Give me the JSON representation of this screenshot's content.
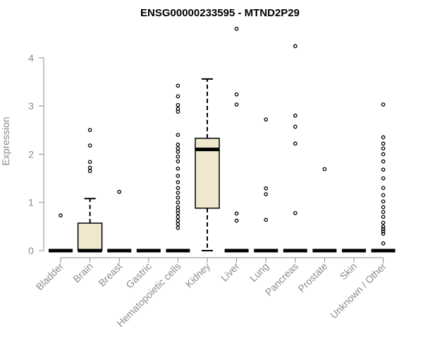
{
  "chart_data": {
    "type": "boxplot",
    "title": "ENSG00000233595 - MTND2P29",
    "xlabel": "",
    "ylabel": "Expression",
    "ylim": [
      0,
      4.6
    ],
    "yticks": [
      0,
      1,
      2,
      3,
      4
    ],
    "grid": false,
    "legend": "none",
    "box_fill": "#efe8cf",
    "categories": [
      "Bladder",
      "Brain",
      "Breast",
      "Gastric",
      "Hematopoietic cells",
      "Kidney",
      "Liver",
      "Lung",
      "Pancreas",
      "Prostate",
      "Skin",
      "Unknown / Other"
    ],
    "series": [
      {
        "category": "Bladder",
        "q1": 0,
        "median": 0,
        "q3": 0,
        "whisker_low": 0,
        "whisker_high": 0,
        "outliers": [
          0.73
        ]
      },
      {
        "category": "Brain",
        "q1": 0,
        "median": 0,
        "q3": 0.57,
        "whisker_low": 0,
        "whisker_high": 1.08,
        "outliers": [
          1.65,
          1.72,
          1.84,
          2.18,
          2.5
        ]
      },
      {
        "category": "Breast",
        "q1": 0,
        "median": 0,
        "q3": 0,
        "whisker_low": 0,
        "whisker_high": 0,
        "outliers": [
          1.22
        ]
      },
      {
        "category": "Gastric",
        "q1": 0,
        "median": 0,
        "q3": 0,
        "whisker_low": 0,
        "whisker_high": 0,
        "outliers": []
      },
      {
        "category": "Hematopoietic cells",
        "q1": 0,
        "median": 0,
        "q3": 0,
        "whisker_low": 0,
        "whisker_high": 0,
        "outliers": [
          0.47,
          0.55,
          0.62,
          0.7,
          0.78,
          0.84,
          0.9,
          1.0,
          1.1,
          1.2,
          1.3,
          1.42,
          1.55,
          1.7,
          1.85,
          1.95,
          2.05,
          2.12,
          2.2,
          2.4,
          2.88,
          2.94,
          3.02,
          3.2,
          3.42
        ]
      },
      {
        "category": "Kidney",
        "q1": 0.88,
        "median": 2.1,
        "q3": 2.33,
        "whisker_low": 0,
        "whisker_high": 3.56,
        "outliers": []
      },
      {
        "category": "Liver",
        "q1": 0,
        "median": 0,
        "q3": 0,
        "whisker_low": 0,
        "whisker_high": 0,
        "outliers": [
          0.62,
          0.77,
          3.03,
          3.24,
          4.6
        ]
      },
      {
        "category": "Lung",
        "q1": 0,
        "median": 0,
        "q3": 0,
        "whisker_low": 0,
        "whisker_high": 0,
        "outliers": [
          0.64,
          1.17,
          1.29,
          2.72
        ]
      },
      {
        "category": "Pancreas",
        "q1": 0,
        "median": 0,
        "q3": 0,
        "whisker_low": 0,
        "whisker_high": 0,
        "outliers": [
          0.78,
          2.22,
          2.57,
          2.8,
          4.24
        ]
      },
      {
        "category": "Prostate",
        "q1": 0,
        "median": 0,
        "q3": 0,
        "whisker_low": 0,
        "whisker_high": 0,
        "outliers": [
          1.69
        ]
      },
      {
        "category": "Skin",
        "q1": 0,
        "median": 0,
        "q3": 0,
        "whisker_low": 0,
        "whisker_high": 0,
        "outliers": []
      },
      {
        "category": "Unknown / Other",
        "q1": 0,
        "median": 0,
        "q3": 0,
        "whisker_low": 0,
        "whisker_high": 0,
        "outliers": [
          0.15,
          0.35,
          0.4,
          0.45,
          0.5,
          0.58,
          0.7,
          0.8,
          0.9,
          1.02,
          1.15,
          1.3,
          1.5,
          1.68,
          1.85,
          2.0,
          2.12,
          2.22,
          2.35,
          3.03
        ]
      }
    ]
  }
}
